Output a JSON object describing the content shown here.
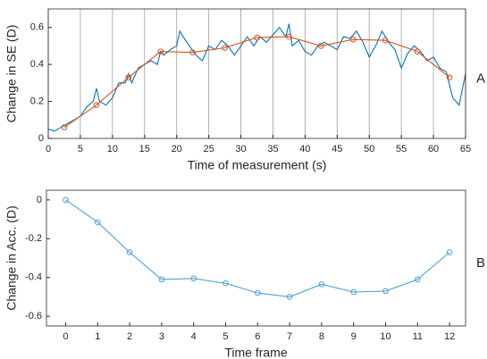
{
  "chart_data": [
    {
      "type": "line",
      "annotation": "A",
      "x_label": "Time of measurement (s)",
      "y_label": "Change in SE (D)",
      "xlim": [
        0,
        65
      ],
      "ylim": [
        0,
        0.7
      ],
      "xticks": [
        0,
        5,
        10,
        15,
        20,
        25,
        30,
        35,
        40,
        45,
        50,
        55,
        60,
        65
      ],
      "yticks": [
        0,
        0.2,
        0.4,
        0.6
      ],
      "x_grid": true,
      "series": [
        {
          "color": "#0072bd",
          "marker": "none",
          "x": [
            0,
            1,
            2,
            3,
            4,
            5,
            6,
            7,
            7.5,
            8,
            9,
            10,
            11,
            12,
            12.5,
            13,
            14,
            15,
            16,
            17,
            17.5,
            18,
            19,
            20,
            20.5,
            21,
            22,
            23,
            24,
            25,
            26,
            27,
            28,
            29,
            30,
            31,
            32,
            33,
            34,
            35,
            36,
            37,
            37.5,
            38,
            39,
            40,
            41,
            42,
            43,
            44,
            45,
            46,
            47,
            48,
            49,
            50,
            51,
            52,
            53,
            54,
            55,
            56,
            57,
            58,
            59,
            60,
            61,
            62,
            63,
            64,
            65
          ],
          "values": [
            0.05,
            0.04,
            0.06,
            0.08,
            0.1,
            0.12,
            0.17,
            0.2,
            0.27,
            0.2,
            0.18,
            0.22,
            0.3,
            0.3,
            0.35,
            0.3,
            0.38,
            0.4,
            0.42,
            0.4,
            0.47,
            0.45,
            0.48,
            0.5,
            0.58,
            0.55,
            0.5,
            0.45,
            0.42,
            0.5,
            0.48,
            0.53,
            0.5,
            0.45,
            0.5,
            0.55,
            0.5,
            0.55,
            0.52,
            0.56,
            0.6,
            0.55,
            0.62,
            0.5,
            0.53,
            0.47,
            0.45,
            0.5,
            0.52,
            0.5,
            0.48,
            0.55,
            0.54,
            0.58,
            0.52,
            0.44,
            0.5,
            0.58,
            0.52,
            0.48,
            0.38,
            0.46,
            0.5,
            0.47,
            0.42,
            0.44,
            0.38,
            0.36,
            0.22,
            0.18,
            0.35
          ]
        },
        {
          "color": "#d95319",
          "marker": "circle",
          "x": [
            2.5,
            7.5,
            12.5,
            17.5,
            22.5,
            27.5,
            32.5,
            37.5,
            42.5,
            47.5,
            52.5,
            57.5,
            62.5
          ],
          "values": [
            0.06,
            0.18,
            0.33,
            0.47,
            0.465,
            0.49,
            0.545,
            0.55,
            0.5,
            0.535,
            0.53,
            0.47,
            0.33
          ]
        }
      ]
    },
    {
      "type": "line",
      "annotation": "B",
      "x_label": "Time frame",
      "y_label": "Change in Acc. (D)",
      "xlim": [
        -0.6,
        12.5
      ],
      "ylim": [
        -0.65,
        0.05
      ],
      "xticks": [
        0,
        1,
        2,
        3,
        4,
        5,
        6,
        7,
        8,
        9,
        10,
        11,
        12
      ],
      "yticks": [
        -0.6,
        -0.4,
        -0.2,
        0
      ],
      "x_grid": false,
      "series": [
        {
          "color": "#4da0d8",
          "marker": "circle",
          "x": [
            0,
            1,
            2,
            3,
            4,
            5,
            6,
            7,
            8,
            9,
            10,
            11,
            12
          ],
          "values": [
            0,
            -0.115,
            -0.27,
            -0.41,
            -0.405,
            -0.43,
            -0.48,
            -0.5,
            -0.435,
            -0.475,
            -0.47,
            -0.41,
            -0.27
          ]
        }
      ]
    }
  ]
}
